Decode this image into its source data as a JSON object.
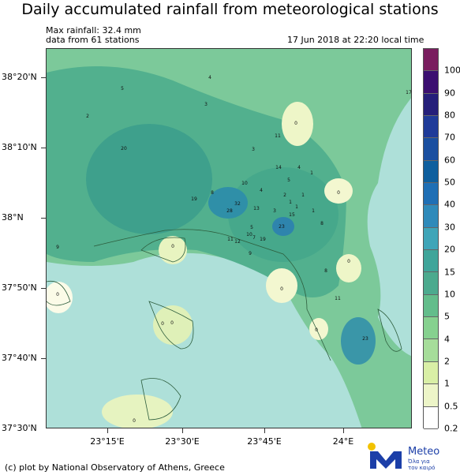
{
  "title": "Daily accumulated rainfall from meteorological stations",
  "max_rainfall": "Max rainfall: 32.4 mm",
  "stations_note": "data from 61 stations",
  "timestamp": "17 Jun 2018 at 22:20 local time",
  "footer": "(c) plot by National Observatory of Athens, Greece",
  "brand": {
    "name": "Meteo",
    "tagline_1": "Όλα για",
    "tagline_2": "τον καιρό"
  },
  "lat_labels": [
    "38°20'N",
    "38°10'N",
    "38°N",
    "37°50'N",
    "37°40'N",
    "37°30'N"
  ],
  "lon_labels": [
    "23°15'E",
    "23°30'E",
    "23°45'E",
    "24°E"
  ],
  "legend": {
    "levels": [
      "100",
      "90",
      "80",
      "70",
      "60",
      "50",
      "40",
      "30",
      "20",
      "15",
      "10",
      "5",
      "4",
      "2",
      "1",
      "0.5",
      "0.2"
    ],
    "colors": [
      "#7a1e5f",
      "#3b0f70",
      "#251f7a",
      "#1f3b99",
      "#1a4fa0",
      "#0f5f9e",
      "#1f6fb5",
      "#2f8aba",
      "#3fa5b8",
      "#3fa59a",
      "#4caa8e",
      "#63bd8b",
      "#86d18f",
      "#a6dd9a",
      "#d9efa6",
      "#edf5c8",
      "#ffffff"
    ]
  },
  "stations": [
    {
      "v": "5"
    },
    {
      "v": "4"
    },
    {
      "v": "2"
    },
    {
      "v": "3"
    },
    {
      "v": "17"
    },
    {
      "v": "0"
    },
    {
      "v": "20"
    },
    {
      "v": "11"
    },
    {
      "v": "3"
    },
    {
      "v": "14"
    },
    {
      "v": "4"
    },
    {
      "v": "1"
    },
    {
      "v": "5"
    },
    {
      "v": "0"
    },
    {
      "v": "10"
    },
    {
      "v": "4"
    },
    {
      "v": "8"
    },
    {
      "v": "19"
    },
    {
      "v": "2"
    },
    {
      "v": "1"
    },
    {
      "v": "32"
    },
    {
      "v": "28"
    },
    {
      "v": "13"
    },
    {
      "v": "3"
    },
    {
      "v": "15"
    },
    {
      "v": "1"
    },
    {
      "v": "1"
    },
    {
      "v": "1"
    },
    {
      "v": "5"
    },
    {
      "v": "10"
    },
    {
      "v": "11"
    },
    {
      "v": "12"
    },
    {
      "v": "7"
    },
    {
      "v": "19"
    },
    {
      "v": "23"
    },
    {
      "v": "8"
    },
    {
      "v": "9"
    },
    {
      "v": "9"
    },
    {
      "v": "0"
    },
    {
      "v": "0"
    },
    {
      "v": "8"
    },
    {
      "v": "0"
    },
    {
      "v": "11"
    },
    {
      "v": "0"
    },
    {
      "v": "0"
    },
    {
      "v": "0"
    },
    {
      "v": "0"
    },
    {
      "v": "0"
    },
    {
      "v": "23"
    }
  ]
}
